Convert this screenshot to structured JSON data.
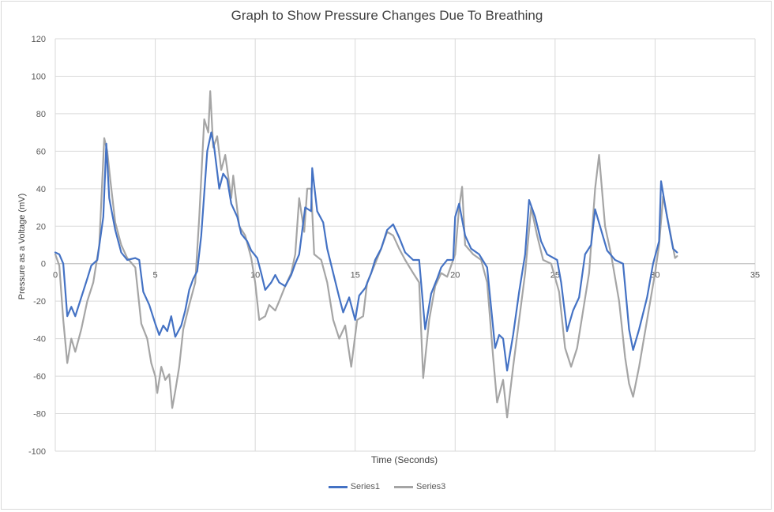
{
  "chart_data": {
    "type": "line",
    "title": "Graph to Show Pressure Changes Due To Breathing",
    "xlabel": "Time (Seconds)",
    "ylabel": "Pressure as a Voltage (mV)",
    "xlim": [
      0,
      35
    ],
    "ylim": [
      -100,
      120
    ],
    "xticks": [
      0,
      5,
      10,
      15,
      20,
      25,
      30,
      35
    ],
    "yticks": [
      -100,
      -80,
      -60,
      -40,
      -20,
      0,
      20,
      40,
      60,
      80,
      100,
      120
    ],
    "grid": true,
    "legend": "bottom",
    "series": [
      {
        "name": "Series1",
        "color": "#4472c4",
        "points": [
          [
            0,
            6
          ],
          [
            0.2,
            5
          ],
          [
            0.4,
            0
          ],
          [
            0.6,
            -28
          ],
          [
            0.8,
            -23
          ],
          [
            1.0,
            -28
          ],
          [
            1.3,
            -18
          ],
          [
            1.6,
            -8
          ],
          [
            1.8,
            -1
          ],
          [
            2.1,
            2
          ],
          [
            2.4,
            25
          ],
          [
            2.55,
            64
          ],
          [
            2.7,
            35
          ],
          [
            3.0,
            18
          ],
          [
            3.3,
            6
          ],
          [
            3.6,
            2
          ],
          [
            4.0,
            3
          ],
          [
            4.2,
            2
          ],
          [
            4.4,
            -15
          ],
          [
            4.7,
            -22
          ],
          [
            5.0,
            -32
          ],
          [
            5.2,
            -38
          ],
          [
            5.4,
            -33
          ],
          [
            5.6,
            -36
          ],
          [
            5.8,
            -28
          ],
          [
            6.0,
            -39
          ],
          [
            6.3,
            -33
          ],
          [
            6.5,
            -25
          ],
          [
            6.7,
            -14
          ],
          [
            6.9,
            -8
          ],
          [
            7.1,
            -4
          ],
          [
            7.3,
            15
          ],
          [
            7.6,
            60
          ],
          [
            7.8,
            70
          ],
          [
            7.95,
            62
          ],
          [
            8.2,
            40
          ],
          [
            8.4,
            48
          ],
          [
            8.6,
            45
          ],
          [
            8.8,
            32
          ],
          [
            9.1,
            25
          ],
          [
            9.3,
            16
          ],
          [
            9.6,
            12
          ],
          [
            9.8,
            7
          ],
          [
            10.1,
            3
          ],
          [
            10.3,
            -5
          ],
          [
            10.5,
            -14
          ],
          [
            10.8,
            -10
          ],
          [
            11.0,
            -6
          ],
          [
            11.2,
            -10
          ],
          [
            11.5,
            -12
          ],
          [
            11.8,
            -6
          ],
          [
            12.0,
            0
          ],
          [
            12.2,
            5
          ],
          [
            12.5,
            30
          ],
          [
            12.8,
            28
          ],
          [
            12.85,
            51
          ],
          [
            13.1,
            28
          ],
          [
            13.4,
            22
          ],
          [
            13.6,
            8
          ],
          [
            13.9,
            -5
          ],
          [
            14.2,
            -18
          ],
          [
            14.4,
            -26
          ],
          [
            14.7,
            -18
          ],
          [
            15.0,
            -30
          ],
          [
            15.2,
            -17
          ],
          [
            15.5,
            -13
          ],
          [
            15.8,
            -5
          ],
          [
            16.0,
            2
          ],
          [
            16.3,
            8
          ],
          [
            16.6,
            18
          ],
          [
            16.9,
            21
          ],
          [
            17.2,
            14
          ],
          [
            17.5,
            6
          ],
          [
            17.9,
            2
          ],
          [
            18.2,
            2
          ],
          [
            18.5,
            -35
          ],
          [
            18.8,
            -16
          ],
          [
            19.1,
            -8
          ],
          [
            19.3,
            -2
          ],
          [
            19.6,
            2
          ],
          [
            19.9,
            2
          ],
          [
            20.0,
            25
          ],
          [
            20.2,
            32
          ],
          [
            20.5,
            15
          ],
          [
            20.8,
            8
          ],
          [
            21.2,
            5
          ],
          [
            21.6,
            -2
          ],
          [
            22.0,
            -45
          ],
          [
            22.2,
            -38
          ],
          [
            22.4,
            -40
          ],
          [
            22.6,
            -57
          ],
          [
            22.9,
            -38
          ],
          [
            23.2,
            -15
          ],
          [
            23.5,
            5
          ],
          [
            23.7,
            34
          ],
          [
            24.0,
            25
          ],
          [
            24.3,
            12
          ],
          [
            24.6,
            5
          ],
          [
            25.1,
            2
          ],
          [
            25.3,
            -10
          ],
          [
            25.6,
            -36
          ],
          [
            25.9,
            -25
          ],
          [
            26.2,
            -18
          ],
          [
            26.5,
            5
          ],
          [
            26.8,
            10
          ],
          [
            27.0,
            29
          ],
          [
            27.3,
            18
          ],
          [
            27.6,
            7
          ],
          [
            28.0,
            2
          ],
          [
            28.4,
            0
          ],
          [
            28.7,
            -35
          ],
          [
            28.9,
            -46
          ],
          [
            29.2,
            -35
          ],
          [
            29.6,
            -18
          ],
          [
            29.9,
            0
          ],
          [
            30.2,
            12
          ],
          [
            30.3,
            44
          ],
          [
            30.6,
            25
          ],
          [
            30.9,
            8
          ],
          [
            31.1,
            6
          ]
        ]
      },
      {
        "name": "Series3",
        "color": "#a5a5a5",
        "points": [
          [
            0,
            5
          ],
          [
            0.2,
            -1
          ],
          [
            0.4,
            -30
          ],
          [
            0.6,
            -53
          ],
          [
            0.8,
            -40
          ],
          [
            1.0,
            -47
          ],
          [
            1.3,
            -35
          ],
          [
            1.6,
            -20
          ],
          [
            1.9,
            -10
          ],
          [
            2.2,
            10
          ],
          [
            2.45,
            67
          ],
          [
            2.6,
            60
          ],
          [
            2.75,
            45
          ],
          [
            3.0,
            22
          ],
          [
            3.3,
            10
          ],
          [
            3.6,
            3
          ],
          [
            4.0,
            -2
          ],
          [
            4.3,
            -32
          ],
          [
            4.6,
            -40
          ],
          [
            4.8,
            -53
          ],
          [
            5.0,
            -60
          ],
          [
            5.1,
            -69
          ],
          [
            5.3,
            -55
          ],
          [
            5.5,
            -62
          ],
          [
            5.7,
            -59
          ],
          [
            5.85,
            -77
          ],
          [
            6.0,
            -68
          ],
          [
            6.2,
            -55
          ],
          [
            6.4,
            -35
          ],
          [
            6.7,
            -22
          ],
          [
            7.0,
            -10
          ],
          [
            7.2,
            25
          ],
          [
            7.45,
            77
          ],
          [
            7.65,
            70
          ],
          [
            7.75,
            92
          ],
          [
            7.9,
            62
          ],
          [
            8.1,
            68
          ],
          [
            8.3,
            50
          ],
          [
            8.5,
            58
          ],
          [
            8.8,
            35
          ],
          [
            8.9,
            47
          ],
          [
            9.2,
            20
          ],
          [
            9.5,
            15
          ],
          [
            9.8,
            3
          ],
          [
            10.0,
            -10
          ],
          [
            10.2,
            -30
          ],
          [
            10.5,
            -28
          ],
          [
            10.7,
            -22
          ],
          [
            11.0,
            -25
          ],
          [
            11.2,
            -20
          ],
          [
            11.5,
            -12
          ],
          [
            11.8,
            -5
          ],
          [
            12.0,
            5
          ],
          [
            12.2,
            35
          ],
          [
            12.45,
            17
          ],
          [
            12.6,
            40
          ],
          [
            12.8,
            40
          ],
          [
            12.95,
            5
          ],
          [
            13.3,
            2
          ],
          [
            13.6,
            -10
          ],
          [
            13.9,
            -30
          ],
          [
            14.2,
            -40
          ],
          [
            14.5,
            -33
          ],
          [
            14.8,
            -55
          ],
          [
            15.1,
            -30
          ],
          [
            15.4,
            -28
          ],
          [
            15.6,
            -10
          ],
          [
            16.0,
            0
          ],
          [
            16.3,
            8
          ],
          [
            16.6,
            17
          ],
          [
            16.9,
            15
          ],
          [
            17.2,
            8
          ],
          [
            17.5,
            2
          ],
          [
            17.9,
            -5
          ],
          [
            18.2,
            -10
          ],
          [
            18.4,
            -61
          ],
          [
            18.7,
            -30
          ],
          [
            19.0,
            -12
          ],
          [
            19.3,
            -5
          ],
          [
            19.6,
            -7
          ],
          [
            20.0,
            5
          ],
          [
            20.2,
            30
          ],
          [
            20.35,
            41
          ],
          [
            20.5,
            10
          ],
          [
            20.9,
            5
          ],
          [
            21.3,
            2
          ],
          [
            21.6,
            -10
          ],
          [
            21.9,
            -50
          ],
          [
            22.1,
            -74
          ],
          [
            22.4,
            -62
          ],
          [
            22.6,
            -82
          ],
          [
            22.9,
            -55
          ],
          [
            23.2,
            -30
          ],
          [
            23.5,
            -5
          ],
          [
            23.8,
            30
          ],
          [
            24.1,
            15
          ],
          [
            24.4,
            2
          ],
          [
            24.8,
            0
          ],
          [
            25.2,
            -15
          ],
          [
            25.5,
            -45
          ],
          [
            25.8,
            -55
          ],
          [
            26.1,
            -45
          ],
          [
            26.4,
            -25
          ],
          [
            26.7,
            -5
          ],
          [
            27.0,
            40
          ],
          [
            27.2,
            58
          ],
          [
            27.5,
            20
          ],
          [
            27.8,
            5
          ],
          [
            28.2,
            -20
          ],
          [
            28.5,
            -50
          ],
          [
            28.7,
            -64
          ],
          [
            28.9,
            -71
          ],
          [
            29.2,
            -55
          ],
          [
            29.6,
            -30
          ],
          [
            30.0,
            -5
          ],
          [
            30.2,
            10
          ],
          [
            30.4,
            36
          ],
          [
            30.7,
            20
          ],
          [
            31.0,
            3
          ],
          [
            31.1,
            4
          ]
        ]
      }
    ]
  }
}
